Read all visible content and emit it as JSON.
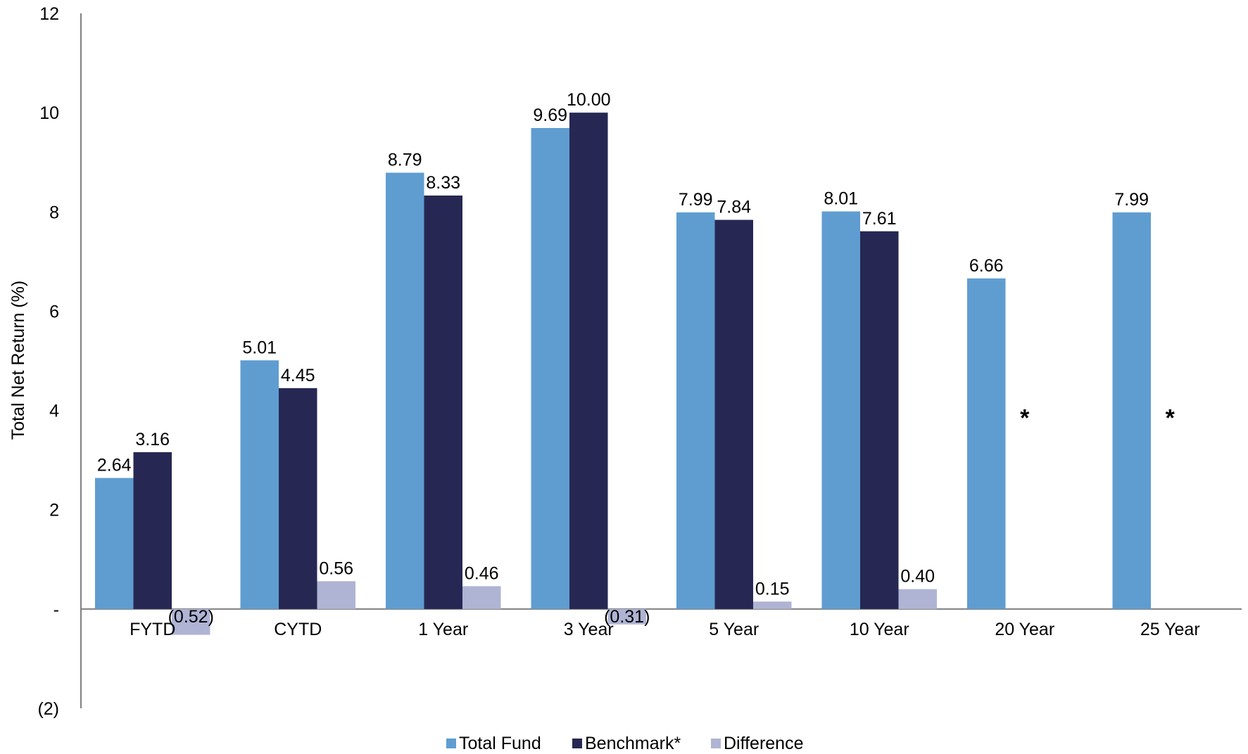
{
  "chart_data": {
    "type": "bar",
    "title": "",
    "xlabel": "",
    "ylabel": "Total Net Return (%)",
    "ylim": [
      -2,
      12
    ],
    "yticks": [
      {
        "value": 12,
        "label": "12"
      },
      {
        "value": 10,
        "label": "10"
      },
      {
        "value": 8,
        "label": "8"
      },
      {
        "value": 6,
        "label": "6"
      },
      {
        "value": 4,
        "label": "4"
      },
      {
        "value": 2,
        "label": "2"
      },
      {
        "value": 0,
        "label": "-"
      },
      {
        "value": -2,
        "label": "(2)"
      }
    ],
    "categories": [
      "FYTD",
      "CYTD",
      "1 Year",
      "3 Year",
      "5 Year",
      "10 Year",
      "20 Year",
      "25 Year"
    ],
    "series": [
      {
        "name": "Total Fund",
        "color": "#5f9dd1",
        "values": [
          2.64,
          5.01,
          8.79,
          9.69,
          7.99,
          8.01,
          6.66,
          7.99
        ],
        "labels": [
          "2.64",
          "5.01",
          "8.79",
          "9.69",
          "7.99",
          "8.01",
          "6.66",
          "7.99"
        ]
      },
      {
        "name": "Benchmark*",
        "color": "#262853",
        "values": [
          3.16,
          4.45,
          8.33,
          10.0,
          7.84,
          7.61,
          null,
          null
        ],
        "labels": [
          "3.16",
          "4.45",
          "8.33",
          "10.00",
          "7.84",
          "7.61",
          "*",
          "*"
        ]
      },
      {
        "name": "Difference",
        "color": "#afb4d4",
        "values": [
          -0.52,
          0.56,
          0.46,
          -0.31,
          0.15,
          0.4,
          null,
          null
        ],
        "labels": [
          "(0.52)",
          "0.56",
          "0.46",
          "(0.31)",
          "0.15",
          "0.40",
          "",
          ""
        ]
      }
    ],
    "grid": false,
    "legend": "bottom"
  }
}
